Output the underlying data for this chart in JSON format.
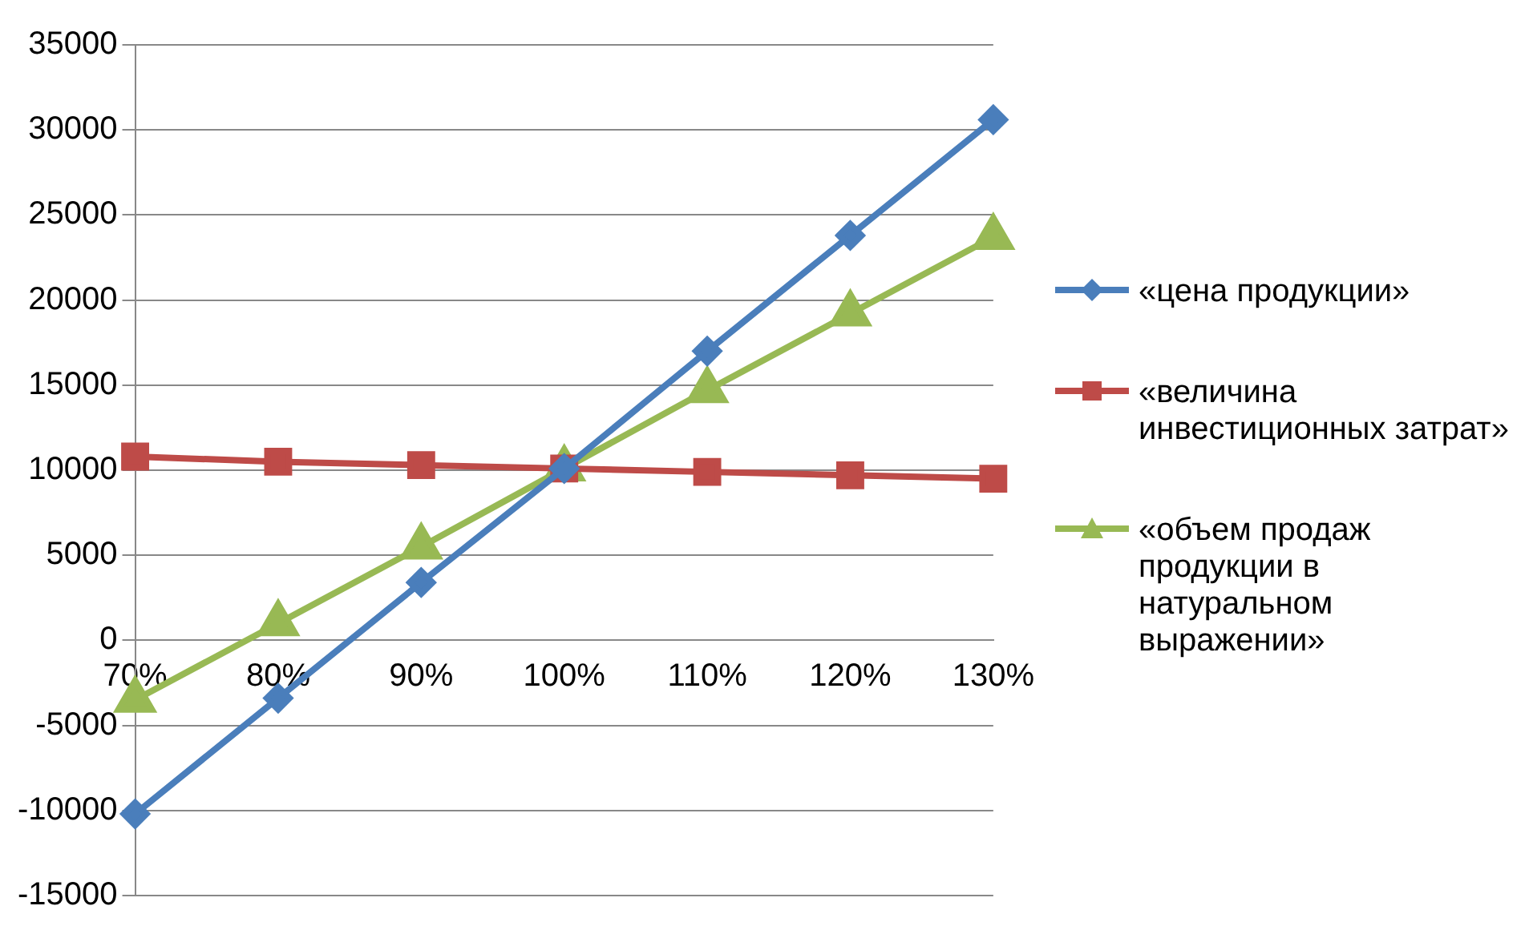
{
  "chart_data": {
    "type": "line",
    "categories": [
      "70%",
      "80%",
      "90%",
      "100%",
      "110%",
      "120%",
      "130%"
    ],
    "series": [
      {
        "name": "«цена продукции»",
        "color": "#4a7ebb",
        "marker": "diamond",
        "values": [
          -10200,
          -3400,
          3400,
          10100,
          17000,
          23800,
          30600
        ]
      },
      {
        "name": "«величина инвестиционных затрат»",
        "color": "#be4b48",
        "marker": "square",
        "values": [
          10800,
          10500,
          10300,
          10100,
          9900,
          9700,
          9500
        ]
      },
      {
        "name": "«объем продаж продукции в натуральном выражении»",
        "color": "#98b954",
        "marker": "triangle",
        "values": [
          -3500,
          1000,
          5500,
          10100,
          14700,
          19200,
          23700
        ]
      }
    ],
    "ylim": [
      -15000,
      35000
    ],
    "yticks": [
      -15000,
      -10000,
      -5000,
      0,
      5000,
      10000,
      15000,
      20000,
      25000,
      30000,
      35000
    ],
    "grid": "y",
    "legend": "right"
  }
}
